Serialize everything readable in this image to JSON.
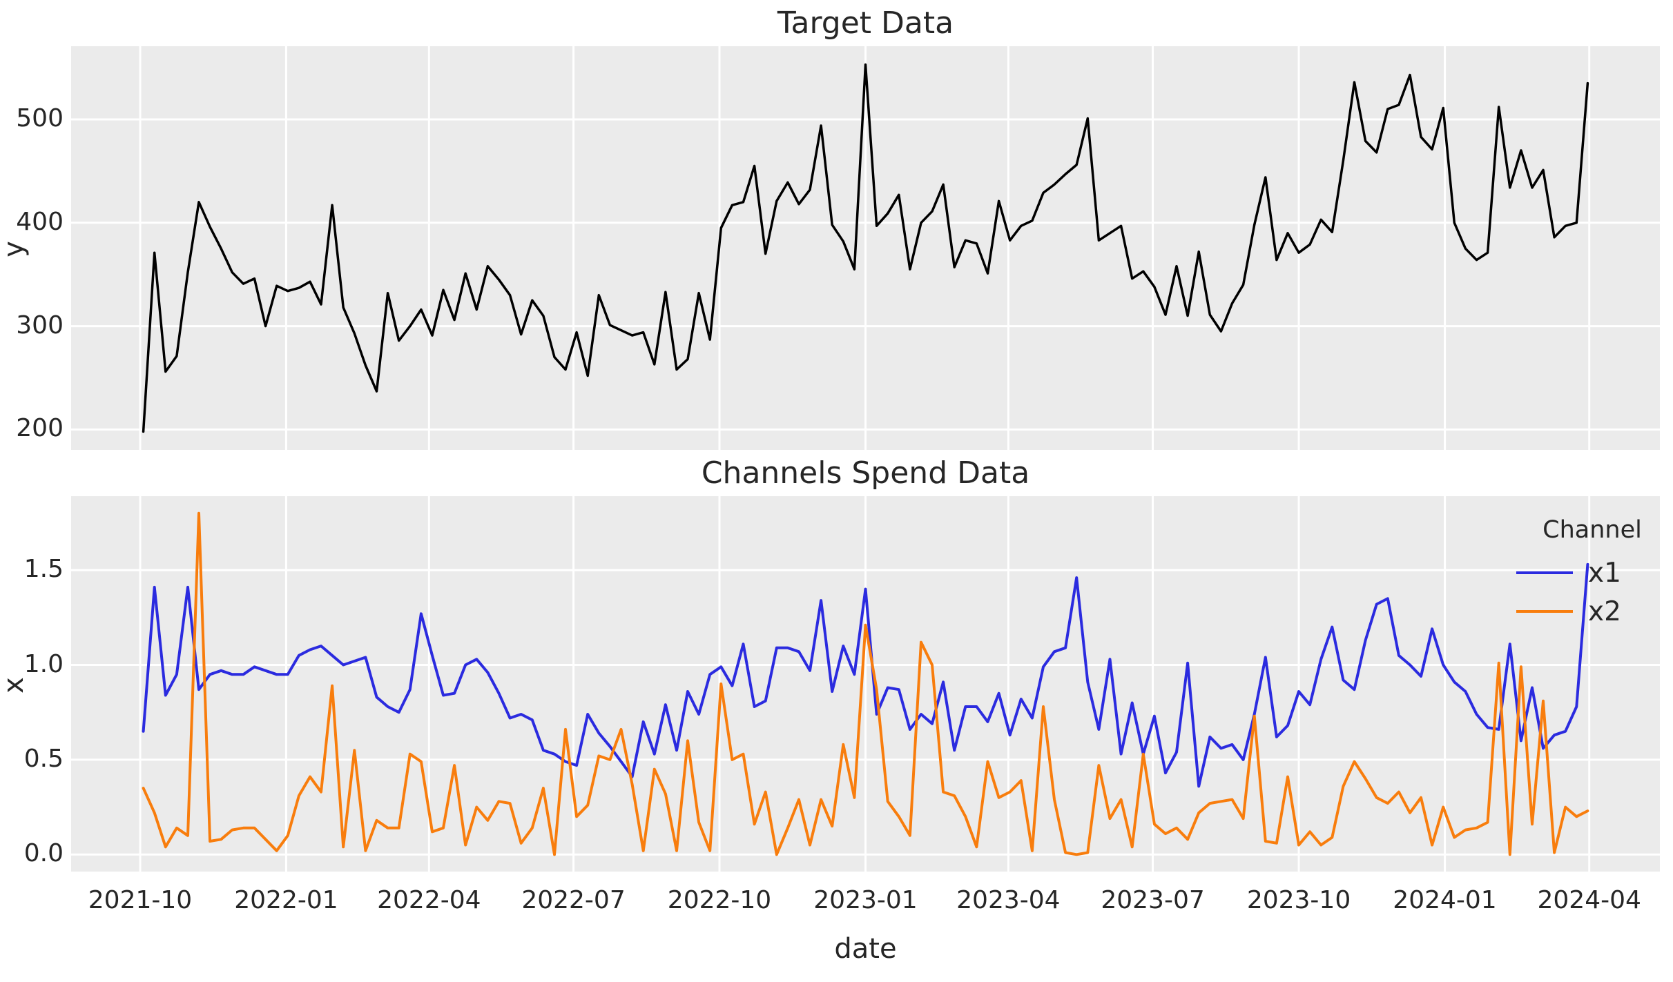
{
  "figure": {
    "background": "#ffffff",
    "panel_background": "#ebebeb",
    "grid_color": "#ffffff",
    "text_color": "#262626"
  },
  "chart_data": [
    {
      "type": "line",
      "title": "Target Data",
      "ylabel": "y",
      "xlabel": "",
      "grid": true,
      "ylim": [
        180.25,
        570.75
      ],
      "yticks": [
        200,
        300,
        400,
        500
      ],
      "ytick_labels": [
        "200",
        "300",
        "400",
        "500"
      ],
      "x_start_date": "2021-10-03",
      "x_freq_days": 7,
      "x_margin_frac": 0.05,
      "series": [
        {
          "name": "y",
          "color": "#000000",
          "linewidth": 3.5,
          "values": [
            198,
            371,
            256,
            271,
            352,
            420,
            396,
            375,
            352,
            341,
            346,
            300,
            339,
            334,
            337,
            343,
            321,
            417,
            318,
            293,
            262,
            237,
            332,
            286,
            300,
            316,
            291,
            335,
            306,
            351,
            316,
            358,
            345,
            330,
            292,
            325,
            310,
            270,
            258,
            294,
            252,
            330,
            301,
            296,
            291,
            294,
            263,
            333,
            258,
            268,
            332,
            287,
            395,
            417,
            420,
            455,
            370,
            421,
            439,
            418,
            432,
            494,
            398,
            382,
            355,
            553,
            397,
            409,
            427,
            355,
            400,
            411,
            437,
            357,
            383,
            380,
            351,
            421,
            383,
            397,
            402,
            429,
            437,
            447,
            456,
            501,
            383,
            390,
            397,
            346,
            353,
            338,
            311,
            358,
            310,
            372,
            311,
            295,
            322,
            340,
            398,
            444,
            364,
            390,
            371,
            379,
            403,
            391,
            460,
            536,
            479,
            468,
            510,
            514,
            543,
            483,
            471,
            511,
            400,
            375,
            364,
            371,
            512,
            434,
            470,
            434,
            451,
            386,
            397,
            400,
            535
          ]
        }
      ],
      "legend": null
    },
    {
      "type": "line",
      "title": "Channels Spend Data",
      "ylabel": "x",
      "xlabel": "date",
      "grid": true,
      "ylim": [
        -0.09,
        1.89
      ],
      "yticks": [
        0.0,
        0.5,
        1.0,
        1.5
      ],
      "ytick_labels": [
        "0.0",
        "0.5",
        "1.0",
        "1.5"
      ],
      "x_start_date": "2021-10-03",
      "x_freq_days": 7,
      "x_margin_frac": 0.05,
      "series": [
        {
          "name": "x1",
          "color": "#2b2bdf",
          "linewidth": 4,
          "values": [
            0.65,
            1.41,
            0.84,
            0.95,
            1.41,
            0.87,
            0.95,
            0.97,
            0.95,
            0.95,
            0.99,
            0.97,
            0.95,
            0.95,
            1.05,
            1.08,
            1.1,
            1.05,
            1.0,
            1.02,
            1.04,
            0.83,
            0.78,
            0.75,
            0.87,
            1.27,
            1.05,
            0.84,
            0.85,
            1.0,
            1.03,
            0.96,
            0.85,
            0.72,
            0.74,
            0.71,
            0.55,
            0.53,
            0.49,
            0.47,
            0.74,
            0.64,
            0.57,
            0.49,
            0.41,
            0.7,
            0.53,
            0.79,
            0.55,
            0.86,
            0.74,
            0.95,
            0.99,
            0.89,
            1.11,
            0.78,
            0.81,
            1.09,
            1.09,
            1.07,
            0.97,
            1.34,
            0.86,
            1.1,
            0.95,
            1.4,
            0.74,
            0.88,
            0.87,
            0.66,
            0.74,
            0.69,
            0.91,
            0.55,
            0.78,
            0.78,
            0.7,
            0.85,
            0.63,
            0.82,
            0.72,
            0.99,
            1.07,
            1.09,
            1.46,
            0.91,
            0.66,
            1.03,
            0.53,
            0.8,
            0.53,
            0.73,
            0.43,
            0.54,
            1.01,
            0.36,
            0.62,
            0.56,
            0.58,
            0.5,
            0.74,
            1.04,
            0.62,
            0.68,
            0.86,
            0.79,
            1.03,
            1.2,
            0.92,
            0.87,
            1.13,
            1.32,
            1.35,
            1.05,
            1.0,
            0.94,
            1.19,
            1.0,
            0.91,
            0.86,
            0.74,
            0.67,
            0.66,
            1.11,
            0.6,
            0.88,
            0.56,
            0.63,
            0.65,
            0.78,
            1.53
          ]
        },
        {
          "name": "x2",
          "color": "#f87d0d",
          "linewidth": 4,
          "values": [
            0.35,
            0.22,
            0.04,
            0.14,
            0.1,
            1.8,
            0.07,
            0.08,
            0.13,
            0.14,
            0.14,
            0.08,
            0.02,
            0.1,
            0.31,
            0.41,
            0.33,
            0.89,
            0.04,
            0.55,
            0.02,
            0.18,
            0.14,
            0.14,
            0.53,
            0.49,
            0.12,
            0.14,
            0.47,
            0.05,
            0.25,
            0.18,
            0.28,
            0.27,
            0.06,
            0.14,
            0.35,
            0.0,
            0.66,
            0.2,
            0.26,
            0.52,
            0.5,
            0.66,
            0.37,
            0.02,
            0.45,
            0.32,
            0.02,
            0.6,
            0.17,
            0.02,
            0.9,
            0.5,
            0.53,
            0.16,
            0.33,
            0.0,
            0.14,
            0.29,
            0.05,
            0.29,
            0.15,
            0.58,
            0.3,
            1.21,
            0.87,
            0.28,
            0.2,
            0.1,
            1.12,
            1.0,
            0.33,
            0.31,
            0.2,
            0.04,
            0.49,
            0.3,
            0.33,
            0.39,
            0.02,
            0.78,
            0.29,
            0.01,
            0.0,
            0.01,
            0.47,
            0.19,
            0.29,
            0.04,
            0.53,
            0.16,
            0.11,
            0.14,
            0.08,
            0.22,
            0.27,
            0.28,
            0.29,
            0.19,
            0.73,
            0.07,
            0.06,
            0.41,
            0.05,
            0.12,
            0.05,
            0.09,
            0.36,
            0.49,
            0.4,
            0.3,
            0.27,
            0.33,
            0.22,
            0.3,
            0.05,
            0.25,
            0.09,
            0.13,
            0.14,
            0.17,
            1.01,
            0.0,
            0.99,
            0.16,
            0.81,
            0.01,
            0.25,
            0.2,
            0.23
          ]
        }
      ],
      "legend": {
        "title": "Channel",
        "entries": [
          "x1",
          "x2"
        ],
        "position": "upper right"
      }
    }
  ],
  "xticks": [
    {
      "label": "2021-10",
      "date": "2021-10-01"
    },
    {
      "label": "2022-01",
      "date": "2022-01-01"
    },
    {
      "label": "2022-04",
      "date": "2022-04-01"
    },
    {
      "label": "2022-07",
      "date": "2022-07-01"
    },
    {
      "label": "2022-10",
      "date": "2022-10-01"
    },
    {
      "label": "2023-01",
      "date": "2023-01-01"
    },
    {
      "label": "2023-04",
      "date": "2023-04-01"
    },
    {
      "label": "2023-07",
      "date": "2023-07-01"
    },
    {
      "label": "2023-10",
      "date": "2023-10-01"
    },
    {
      "label": "2024-01",
      "date": "2024-01-01"
    },
    {
      "label": "2024-04",
      "date": "2024-04-01"
    }
  ]
}
